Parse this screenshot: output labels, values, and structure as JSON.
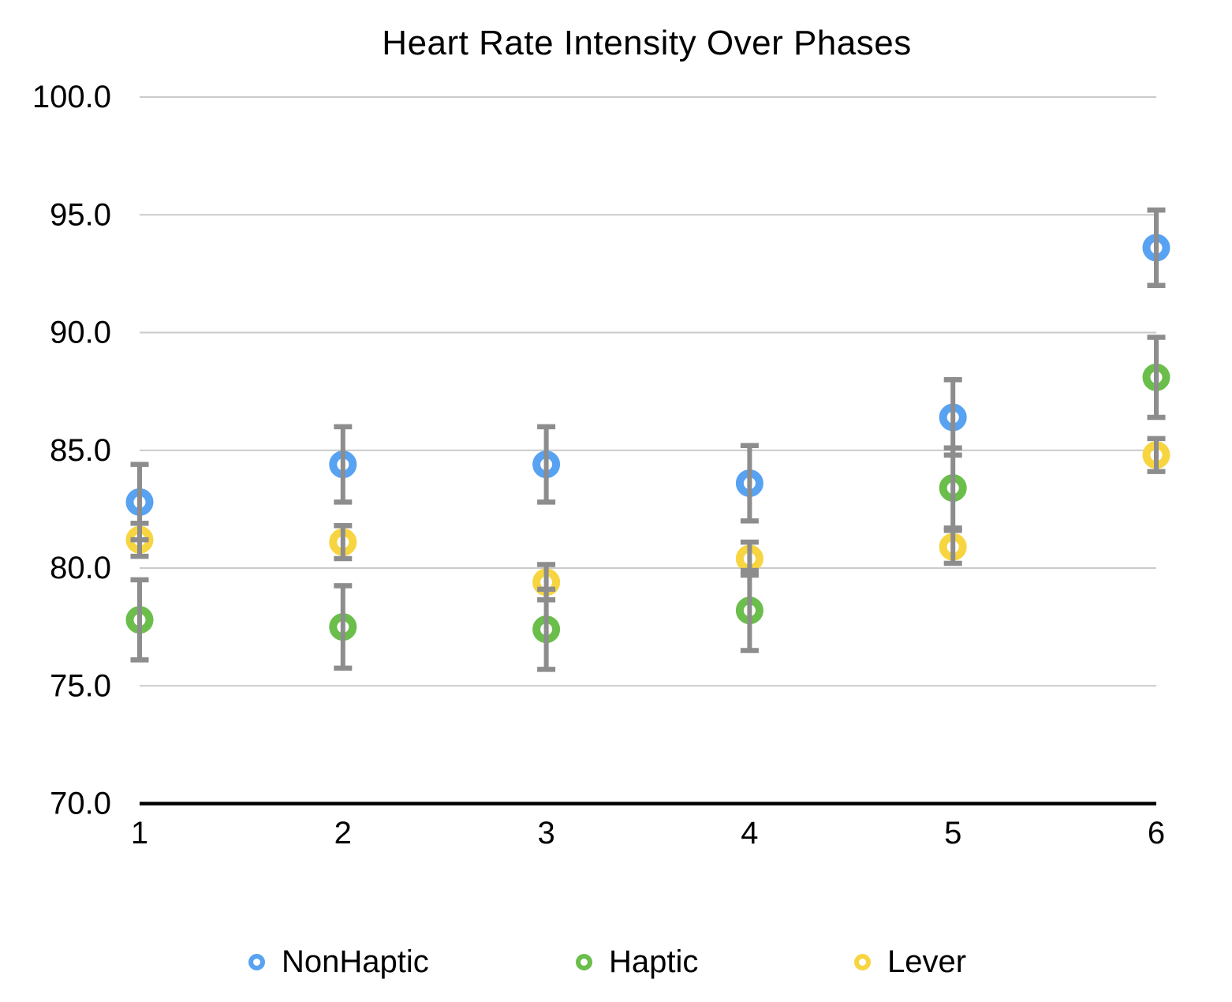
{
  "chart_data": {
    "type": "scatter",
    "title": "Heart Rate Intensity Over Phases",
    "xlabel": "",
    "ylabel": "",
    "x": [
      1,
      2,
      3,
      4,
      5,
      6
    ],
    "xtick_labels": [
      "1",
      "2",
      "3",
      "4",
      "5",
      "6"
    ],
    "ylim": [
      70,
      100
    ],
    "yticks": [
      70,
      75,
      80,
      85,
      90,
      95,
      100
    ],
    "ytick_labels": [
      "70.0",
      "75.0",
      "80.0",
      "85.0",
      "90.0",
      "95.0",
      "100.0"
    ],
    "grid": true,
    "marker": "open-circle",
    "error_bars": true,
    "legend_position": "bottom",
    "series": [
      {
        "name": "NonHaptic",
        "color": "#58A2F2",
        "values": [
          82.8,
          84.4,
          84.4,
          83.6,
          86.4,
          93.6
        ],
        "errors": [
          1.6,
          1.6,
          1.6,
          1.6,
          1.6,
          1.6
        ]
      },
      {
        "name": "Haptic",
        "color": "#6BBE4B",
        "values": [
          77.8,
          77.5,
          77.4,
          78.2,
          83.4,
          88.1
        ],
        "errors": [
          1.7,
          1.75,
          1.7,
          1.7,
          1.7,
          1.7
        ]
      },
      {
        "name": "Lever",
        "color": "#F7D540",
        "values": [
          81.2,
          81.1,
          79.4,
          80.4,
          80.9,
          84.8
        ],
        "errors": [
          0.7,
          0.7,
          0.75,
          0.7,
          0.7,
          0.7
        ]
      }
    ],
    "colors": {
      "error_bar": "#8D8D8D",
      "gridline": "#CACACA",
      "axis_line": "#000000",
      "tick_text": "#000000",
      "title_text": "#000000"
    }
  }
}
